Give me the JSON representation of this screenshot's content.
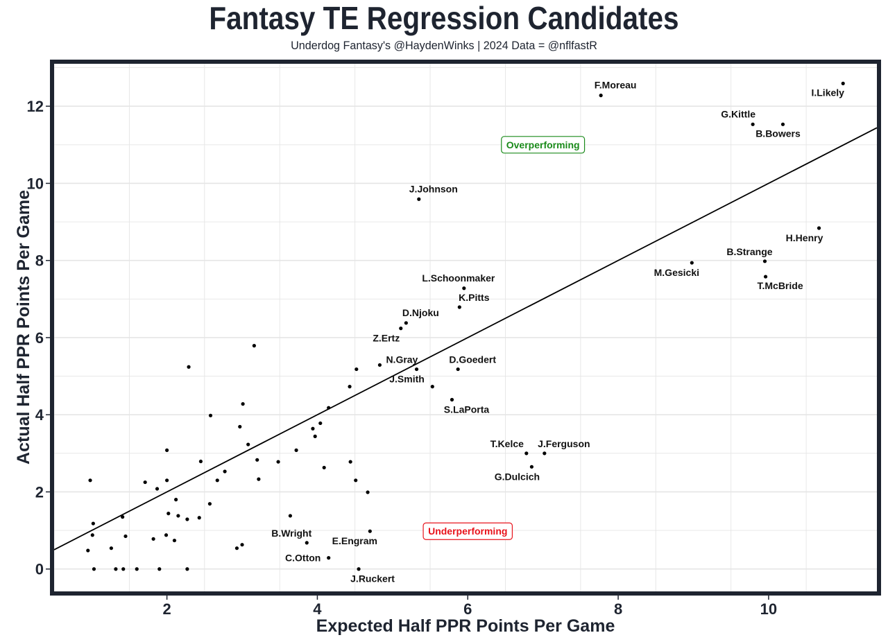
{
  "header": {
    "title": "Fantasy TE Regression Candidates",
    "subtitle": "Underdog Fantasy's @HaydenWinks | 2024 Data = @nflfastR"
  },
  "chart_data": {
    "type": "scatter",
    "title": "Fantasy TE Regression Candidates",
    "subtitle": "Underdog Fantasy's @HaydenWinks | 2024 Data = @nflfastR",
    "xlabel": "Expected Half PPR Points Per Game",
    "ylabel": "Actual Half PPR Points Per Game",
    "xlim": [
      0.5,
      11.44
    ],
    "ylim": [
      -0.58,
      13.1
    ],
    "xticks": [
      2,
      4,
      6,
      8,
      10
    ],
    "yticks": [
      0,
      2,
      4,
      6,
      8,
      10,
      12
    ],
    "x_tick_labels": [
      "2",
      "4",
      "6",
      "8",
      "10"
    ],
    "y_tick_labels": [
      "0",
      "2",
      "4",
      "6",
      "8",
      "10",
      "12"
    ],
    "grid": true,
    "reference_line": {
      "type": "identity",
      "slope": 1,
      "intercept": 0,
      "color": "#000000"
    },
    "colors": {
      "text": "#1e2430",
      "point": "#000000",
      "grid": "#e5e5e5",
      "over": "#1a8a1a",
      "under": "#e8131b"
    },
    "annotations": [
      {
        "text": "Overperforming",
        "x": 7.0,
        "y": 11.0,
        "color": "#1a8a1a"
      },
      {
        "text": "Underperforming",
        "x": 6.0,
        "y": 0.98,
        "color": "#e8131b"
      }
    ],
    "points": [
      {
        "x": 7.77,
        "y": 12.28,
        "label": "F.Moreau"
      },
      {
        "x": 10.99,
        "y": 12.59,
        "label": "I.Likely"
      },
      {
        "x": 9.79,
        "y": 11.53,
        "label": "G.Kittle"
      },
      {
        "x": 10.19,
        "y": 11.53,
        "label": "B.Bowers"
      },
      {
        "x": 5.35,
        "y": 9.59,
        "label": "J.Johnson"
      },
      {
        "x": 10.67,
        "y": 8.84,
        "label": "H.Henry"
      },
      {
        "x": 9.95,
        "y": 7.98,
        "label": "B.Strange"
      },
      {
        "x": 8.98,
        "y": 7.94,
        "label": "M.Gesicki"
      },
      {
        "x": 9.96,
        "y": 7.58,
        "label": "T.McBride"
      },
      {
        "x": 5.95,
        "y": 7.28,
        "label": "L.Schoonmaker"
      },
      {
        "x": 5.89,
        "y": 6.79,
        "label": "K.Pitts"
      },
      {
        "x": 5.18,
        "y": 6.38,
        "label": "D.Njoku"
      },
      {
        "x": 5.11,
        "y": 6.24,
        "label": "Z.Ertz"
      },
      {
        "x": 4.83,
        "y": 5.29,
        "label": "N.Gray"
      },
      {
        "x": 5.32,
        "y": 5.18,
        "label": "J.Smith"
      },
      {
        "x": 5.87,
        "y": 5.18,
        "label": "D.Goedert"
      },
      {
        "x": 5.79,
        "y": 4.39,
        "label": "S.LaPorta"
      },
      {
        "x": 6.78,
        "y": 3.0,
        "label": "T.Kelce"
      },
      {
        "x": 7.02,
        "y": 3.0,
        "label": "J.Ferguson"
      },
      {
        "x": 6.85,
        "y": 2.65,
        "label": "G.Dulcich"
      },
      {
        "x": 3.86,
        "y": 0.68,
        "label": "B.Wright"
      },
      {
        "x": 4.7,
        "y": 0.98,
        "label": "E.Engram"
      },
      {
        "x": 4.15,
        "y": 0.29,
        "label": "C.Otton"
      },
      {
        "x": 4.55,
        "y": 0.0,
        "label": "J.Ruckert"
      },
      {
        "x": 5.53,
        "y": 4.73
      },
      {
        "x": 3.16,
        "y": 5.79
      },
      {
        "x": 2.29,
        "y": 5.24
      },
      {
        "x": 4.52,
        "y": 5.18
      },
      {
        "x": 4.43,
        "y": 4.73
      },
      {
        "x": 3.01,
        "y": 4.28
      },
      {
        "x": 2.58,
        "y": 3.98
      },
      {
        "x": 4.15,
        "y": 4.18
      },
      {
        "x": 2.97,
        "y": 3.69
      },
      {
        "x": 4.04,
        "y": 3.78
      },
      {
        "x": 3.94,
        "y": 3.64
      },
      {
        "x": 3.97,
        "y": 3.44
      },
      {
        "x": 3.08,
        "y": 3.23
      },
      {
        "x": 2.0,
        "y": 3.08
      },
      {
        "x": 3.72,
        "y": 3.08
      },
      {
        "x": 2.45,
        "y": 2.79
      },
      {
        "x": 3.2,
        "y": 2.83
      },
      {
        "x": 3.48,
        "y": 2.78
      },
      {
        "x": 4.44,
        "y": 2.78
      },
      {
        "x": 4.09,
        "y": 2.63
      },
      {
        "x": 2.77,
        "y": 2.53
      },
      {
        "x": 3.22,
        "y": 2.33
      },
      {
        "x": 2.67,
        "y": 2.3
      },
      {
        "x": 2.0,
        "y": 2.3
      },
      {
        "x": 0.98,
        "y": 2.3
      },
      {
        "x": 4.51,
        "y": 2.3
      },
      {
        "x": 1.71,
        "y": 2.25
      },
      {
        "x": 1.87,
        "y": 2.08
      },
      {
        "x": 4.67,
        "y": 1.99
      },
      {
        "x": 2.12,
        "y": 1.8
      },
      {
        "x": 2.57,
        "y": 1.69
      },
      {
        "x": 2.02,
        "y": 1.44
      },
      {
        "x": 2.15,
        "y": 1.38
      },
      {
        "x": 1.41,
        "y": 1.35
      },
      {
        "x": 2.43,
        "y": 1.33
      },
      {
        "x": 2.27,
        "y": 1.29
      },
      {
        "x": 3.64,
        "y": 1.38
      },
      {
        "x": 1.02,
        "y": 1.18
      },
      {
        "x": 1.01,
        "y": 0.88
      },
      {
        "x": 1.99,
        "y": 0.88
      },
      {
        "x": 1.45,
        "y": 0.85
      },
      {
        "x": 1.82,
        "y": 0.78
      },
      {
        "x": 2.1,
        "y": 0.74
      },
      {
        "x": 3.0,
        "y": 0.63
      },
      {
        "x": 1.26,
        "y": 0.54
      },
      {
        "x": 2.93,
        "y": 0.54
      },
      {
        "x": 0.95,
        "y": 0.48
      },
      {
        "x": 1.03,
        "y": 0.0
      },
      {
        "x": 1.32,
        "y": 0.0
      },
      {
        "x": 1.42,
        "y": 0.0
      },
      {
        "x": 1.6,
        "y": 0.0
      },
      {
        "x": 1.9,
        "y": 0.0
      },
      {
        "x": 2.27,
        "y": 0.0
      }
    ]
  }
}
